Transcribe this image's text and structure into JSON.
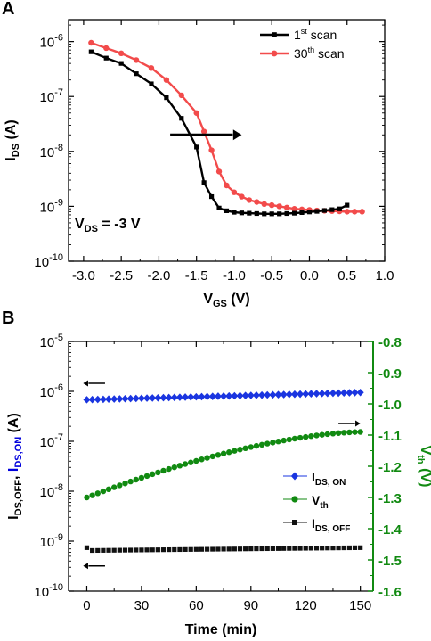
{
  "chart_data": [
    {
      "panel": "A",
      "type": "line",
      "xlabel": "V",
      "xlabel_sub": "GS",
      "xlabel_unit": " (V)",
      "ylabel": "I",
      "ylabel_sub": "DS",
      "ylabel_unit": " (A)",
      "xlim": [
        -3.2,
        1.0
      ],
      "ylim_exp": [
        -10,
        -5.6
      ],
      "y_scale": "log",
      "x_ticks": [
        -3.0,
        -2.5,
        -2.0,
        -1.5,
        -1.0,
        -0.5,
        0.0,
        0.5,
        1.0
      ],
      "x_tick_labels": [
        "-3.0",
        "-2.5",
        "-2.0",
        "-1.5",
        "-1.0",
        "-0.5",
        "0.0",
        "0.5",
        "1.0"
      ],
      "y_tick_exps": [
        -10,
        -9,
        -8,
        -7,
        -6
      ],
      "annotation": {
        "text": "V",
        "sub": "DS",
        "rest": " = -3 V"
      },
      "arrow": {
        "x_from": -1.85,
        "x_to": -0.9,
        "y": 2e-08,
        "color": "#000000"
      },
      "legend_position": "top-right",
      "series": [
        {
          "name": "1",
          "name_sup": "st",
          "name_rest": " scan",
          "color": "#000000",
          "marker": "square",
          "x": [
            -2.9,
            -2.7,
            -2.5,
            -2.3,
            -2.1,
            -1.9,
            -1.7,
            -1.5,
            -1.4,
            -1.3,
            -1.2,
            -1.1,
            -1.0,
            -0.9,
            -0.8,
            -0.7,
            -0.6,
            -0.5,
            -0.4,
            -0.3,
            -0.2,
            -0.1,
            0.0,
            0.1,
            0.2,
            0.3,
            0.4,
            0.5
          ],
          "y": [
            6.5e-07,
            5e-07,
            4e-07,
            2.6e-07,
            1.7e-07,
            9.5e-08,
            4e-08,
            1.2e-08,
            2.7e-09,
            1.5e-09,
            9.3e-10,
            8.3e-10,
            7.8e-10,
            7.6e-10,
            7.5e-10,
            7.4e-10,
            7.3e-10,
            7.3e-10,
            7.3e-10,
            7.4e-10,
            7.5e-10,
            7.7e-10,
            7.9e-10,
            8.1e-10,
            8.4e-10,
            8.7e-10,
            9e-10,
            1.05e-09
          ]
        },
        {
          "name": "30",
          "name_sup": "th",
          "name_rest": " scan",
          "color": "#f24b4b",
          "marker": "circle",
          "x": [
            -2.9,
            -2.7,
            -2.5,
            -2.3,
            -2.1,
            -1.9,
            -1.7,
            -1.5,
            -1.4,
            -1.3,
            -1.2,
            -1.1,
            -1.0,
            -0.9,
            -0.8,
            -0.7,
            -0.6,
            -0.5,
            -0.4,
            -0.3,
            -0.2,
            -0.1,
            0.0,
            0.1,
            0.2,
            0.3,
            0.4,
            0.5,
            0.6,
            0.7
          ],
          "y": [
            9.5e-07,
            7.6e-07,
            6.1e-07,
            4.6e-07,
            3.3e-07,
            2e-07,
            1.05e-07,
            5e-08,
            2.3e-08,
            1.05e-08,
            4.3e-09,
            2.4e-09,
            1.8e-09,
            1.5e-09,
            1.3e-09,
            1.2e-09,
            1.1e-09,
            1.05e-09,
            1e-09,
            9.5e-10,
            9e-10,
            8.8e-10,
            8.6e-10,
            8.4e-10,
            8.3e-10,
            8.2e-10,
            8.1e-10,
            8e-10,
            8e-10,
            8e-10
          ]
        }
      ]
    },
    {
      "panel": "B",
      "type": "scatter",
      "xlabel": "Time (min)",
      "xlim": [
        -10,
        157
      ],
      "x_ticks": [
        0,
        30,
        60,
        90,
        120,
        150
      ],
      "y_scale": "log",
      "ylim_exp": [
        -10,
        -5
      ],
      "y_tick_exps": [
        -10,
        -9,
        -8,
        -7,
        -6,
        -5
      ],
      "ylabel_parts": [
        {
          "text": "I",
          "color": "#000000"
        },
        {
          "text": "DS,OFF",
          "sub": true,
          "color": "#000000"
        },
        {
          "text": ", ",
          "color": "#000000"
        },
        {
          "text": "I",
          "color": "#0000dd"
        },
        {
          "text": "DS,ON",
          "sub": true,
          "color": "#0000dd"
        },
        {
          "text": " (A)",
          "color": "#000000"
        }
      ],
      "y2label": "V",
      "y2label_sub": "th",
      "y2label_unit": " (V)",
      "y2lim": [
        -1.6,
        -0.8
      ],
      "y2_ticks": [
        -1.6,
        -1.5,
        -1.4,
        -1.3,
        -1.2,
        -1.1,
        -1.0,
        -0.9,
        -0.8
      ],
      "y2_tick_labels": [
        "-1.6",
        "-1.5",
        "-1.4",
        "-1.3",
        "-1.2",
        "-1.1",
        "-1.0",
        "-0.9",
        "-0.8"
      ],
      "y2_color": "#118a11",
      "legend_position": "right",
      "time": [
        0,
        3,
        6,
        9,
        12,
        15,
        18,
        21,
        24,
        27,
        30,
        33,
        36,
        39,
        42,
        45,
        48,
        51,
        54,
        57,
        60,
        63,
        66,
        69,
        72,
        75,
        78,
        81,
        84,
        87,
        90,
        93,
        96,
        99,
        102,
        105,
        108,
        111,
        114,
        117,
        120,
        123,
        126,
        129,
        132,
        135,
        138,
        141,
        144,
        147,
        150
      ],
      "series": [
        {
          "name": "I",
          "name_sub": "DS, ON",
          "color": "#1a35e0",
          "marker": "diamond",
          "axis": "left",
          "start": 6.8e-07,
          "end": 9.5e-07
        },
        {
          "name": "V",
          "name_sub": "th",
          "color": "#118a11",
          "marker": "circle",
          "axis": "right",
          "start": -1.3,
          "end": -1.09
        },
        {
          "name": "I",
          "name_sub": "DS, OFF",
          "color": "#111111",
          "marker": "square",
          "axis": "left",
          "first": 7.4e-10,
          "start": 6.5e-10,
          "end": 7.4e-10
        }
      ],
      "arrows": [
        {
          "target": "I_DS,ON",
          "direction": "left",
          "time_from": 10,
          "time_to": -2
        },
        {
          "target": "V_th",
          "direction": "right",
          "time_from": 138,
          "time_to": 150
        },
        {
          "target": "I_DS,OFF",
          "direction": "left",
          "time_from": 10,
          "time_to": -2
        }
      ]
    }
  ]
}
